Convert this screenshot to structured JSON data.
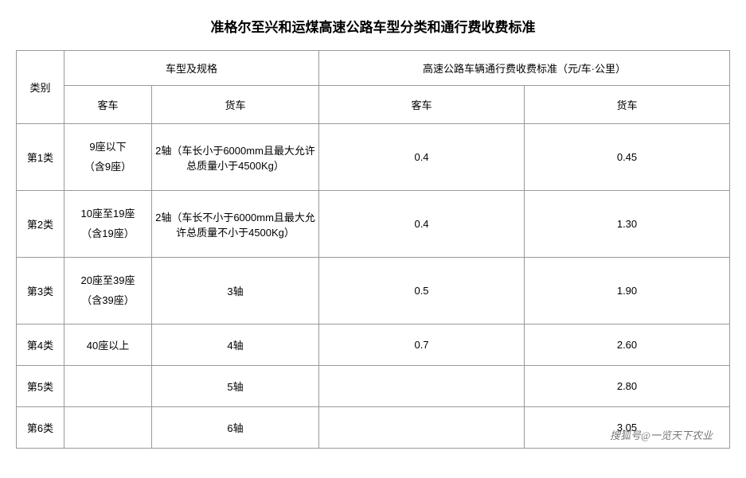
{
  "title": "准格尔至兴和运煤高速公路车型分类和通行费收费标准",
  "title_fontsize": 17,
  "body_fontsize": 13,
  "colors": {
    "background": "#ffffff",
    "text": "#000000",
    "border": "#999999",
    "watermark": "rgba(0,0,0,0.55)"
  },
  "header": {
    "category": "类别",
    "spec_group": "车型及规格",
    "rate_group": "高速公路车辆通行费收费标准（元/车·公里）",
    "bus": "客车",
    "truck": "货车",
    "rate_bus": "客车",
    "rate_truck": "货车"
  },
  "rows": [
    {
      "cat": "第1类",
      "bus_l1": "9座以下",
      "bus_l2": "（含9座）",
      "truck": "2轴（车长小于6000mm且最大允许总质量小于4500Kg）",
      "rate_bus": "0.4",
      "rate_truck": "0.45",
      "tall": true
    },
    {
      "cat": "第2类",
      "bus_l1": "10座至19座",
      "bus_l2": "（含19座）",
      "truck": "2轴（车长不小于6000mm且最大允许总质量不小于4500Kg）",
      "rate_bus": "0.4",
      "rate_truck": "1.30",
      "tall": true
    },
    {
      "cat": "第3类",
      "bus_l1": "20座至39座",
      "bus_l2": "（含39座）",
      "truck": "3轴",
      "rate_bus": "0.5",
      "rate_truck": "1.90",
      "tall": true
    },
    {
      "cat": "第4类",
      "bus_l1": "40座以上",
      "bus_l2": "",
      "truck": "4轴",
      "rate_bus": "0.7",
      "rate_truck": "2.60",
      "tall": false
    },
    {
      "cat": "第5类",
      "bus_l1": "",
      "bus_l2": "",
      "truck": "5轴",
      "rate_bus": "",
      "rate_truck": "2.80",
      "tall": false
    },
    {
      "cat": "第6类",
      "bus_l1": "",
      "bus_l2": "",
      "truck": "6轴",
      "rate_bus": "",
      "rate_truck": "3.05",
      "tall": false
    }
  ],
  "watermark": "搜狐号@一览天下农业"
}
